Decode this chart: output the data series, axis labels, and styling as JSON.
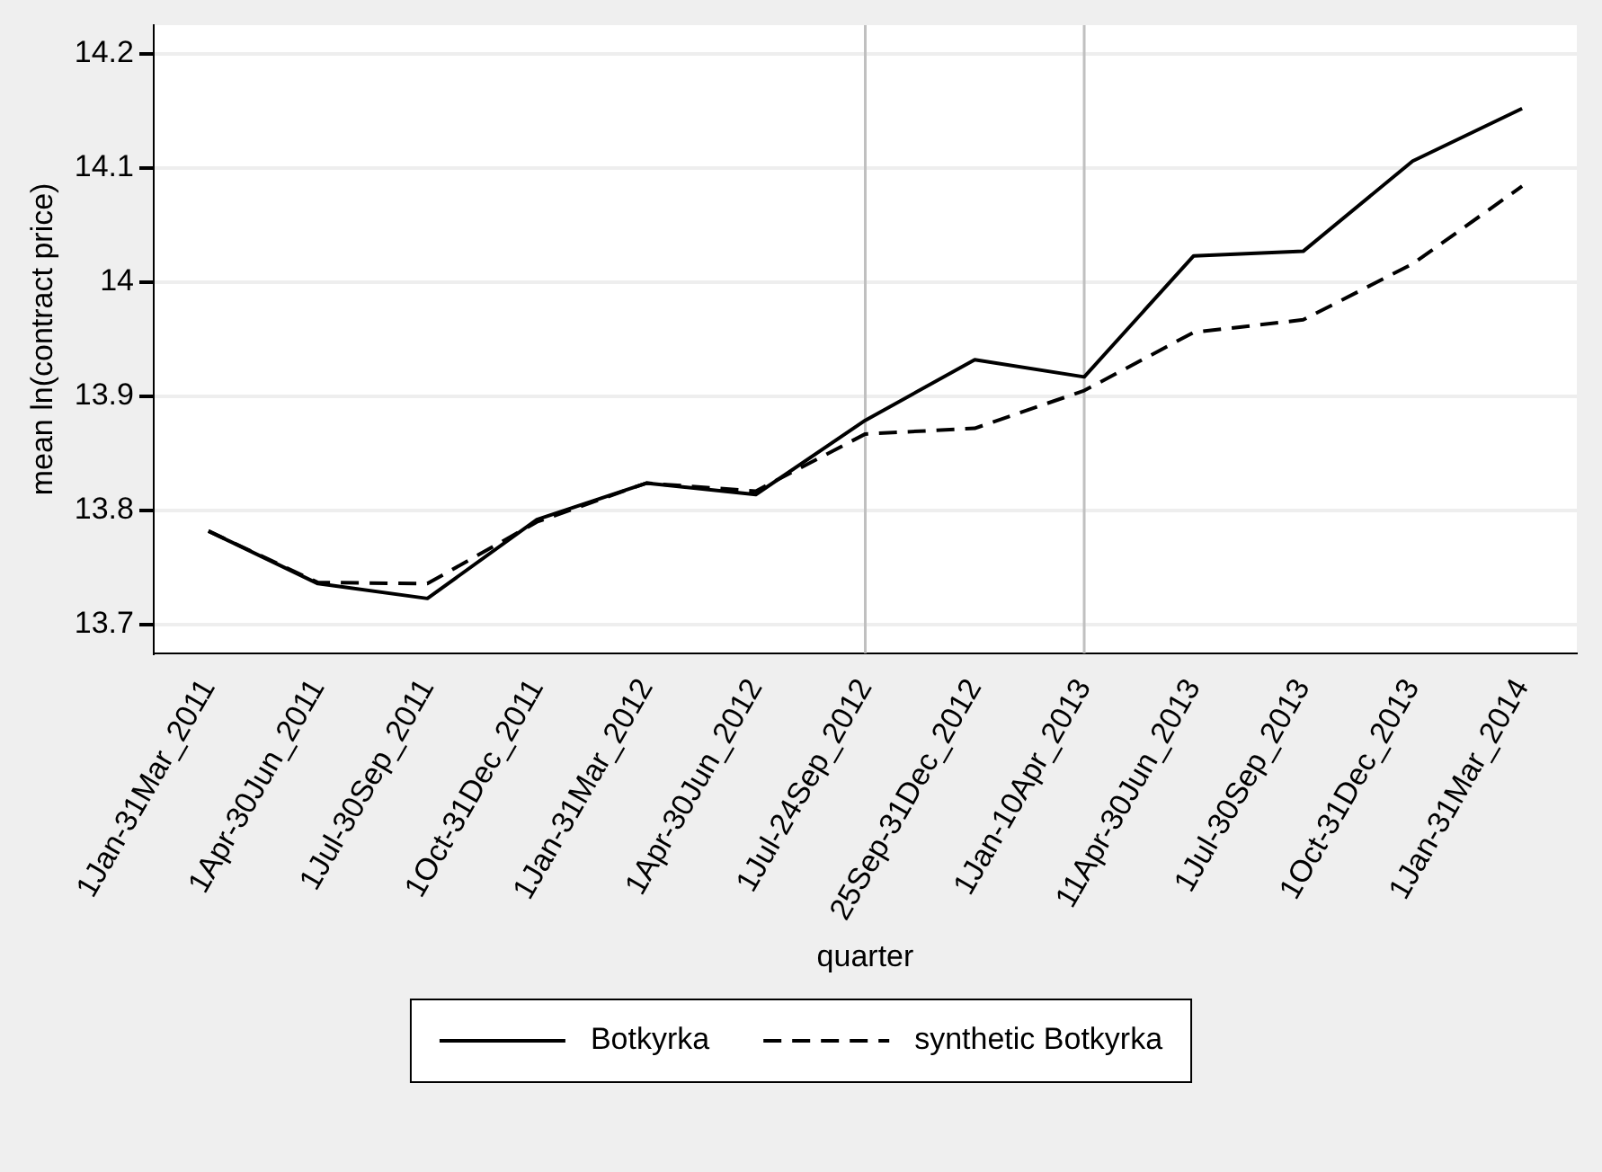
{
  "chart_data": {
    "type": "line",
    "xlabel": "quarter",
    "ylabel": "mean ln(contract price)",
    "categories": [
      "1Jan-31Mar_2011",
      "1Apr-30Jun_2011",
      "1Jul-30Sep_2011",
      "1Oct-31Dec_2011",
      "1Jan-31Mar_2012",
      "1Apr-30Jun_2012",
      "1Jul-24Sep_2012",
      "25Sep-31Dec_2012",
      "1Jan-10Apr_2013",
      "11Apr-30Jun_2013",
      "1Jul-30Sep_2013",
      "1Oct-31Dec_2013",
      "1Jan-31Mar_2014"
    ],
    "series": [
      {
        "name": "Botkyrka",
        "color": "#000000",
        "line_style": "solid",
        "values": [
          13.782,
          13.736,
          13.723,
          13.792,
          13.824,
          13.814,
          13.879,
          13.932,
          13.917,
          14.023,
          14.027,
          14.106,
          14.152
        ]
      },
      {
        "name": "synthetic Botkyrka",
        "color": "#000000",
        "line_style": "dashed",
        "values": [
          13.782,
          13.737,
          13.736,
          13.79,
          13.824,
          13.817,
          13.867,
          13.872,
          13.905,
          13.956,
          13.967,
          14.016,
          14.084
        ]
      }
    ],
    "ylim": [
      13.675,
      14.225
    ],
    "yticks": [
      13.7,
      13.8,
      13.9,
      14,
      14.1,
      14.2
    ],
    "grid": "y",
    "legend": "bottom",
    "marker": "none",
    "ref_lines": [
      {
        "axis": "x",
        "value": "1Jul-24Sep_2012",
        "color": "#c0c0c0"
      },
      {
        "axis": "x",
        "value": "1Jan-10Apr_2013",
        "color": "#c0c0c0"
      }
    ]
  }
}
